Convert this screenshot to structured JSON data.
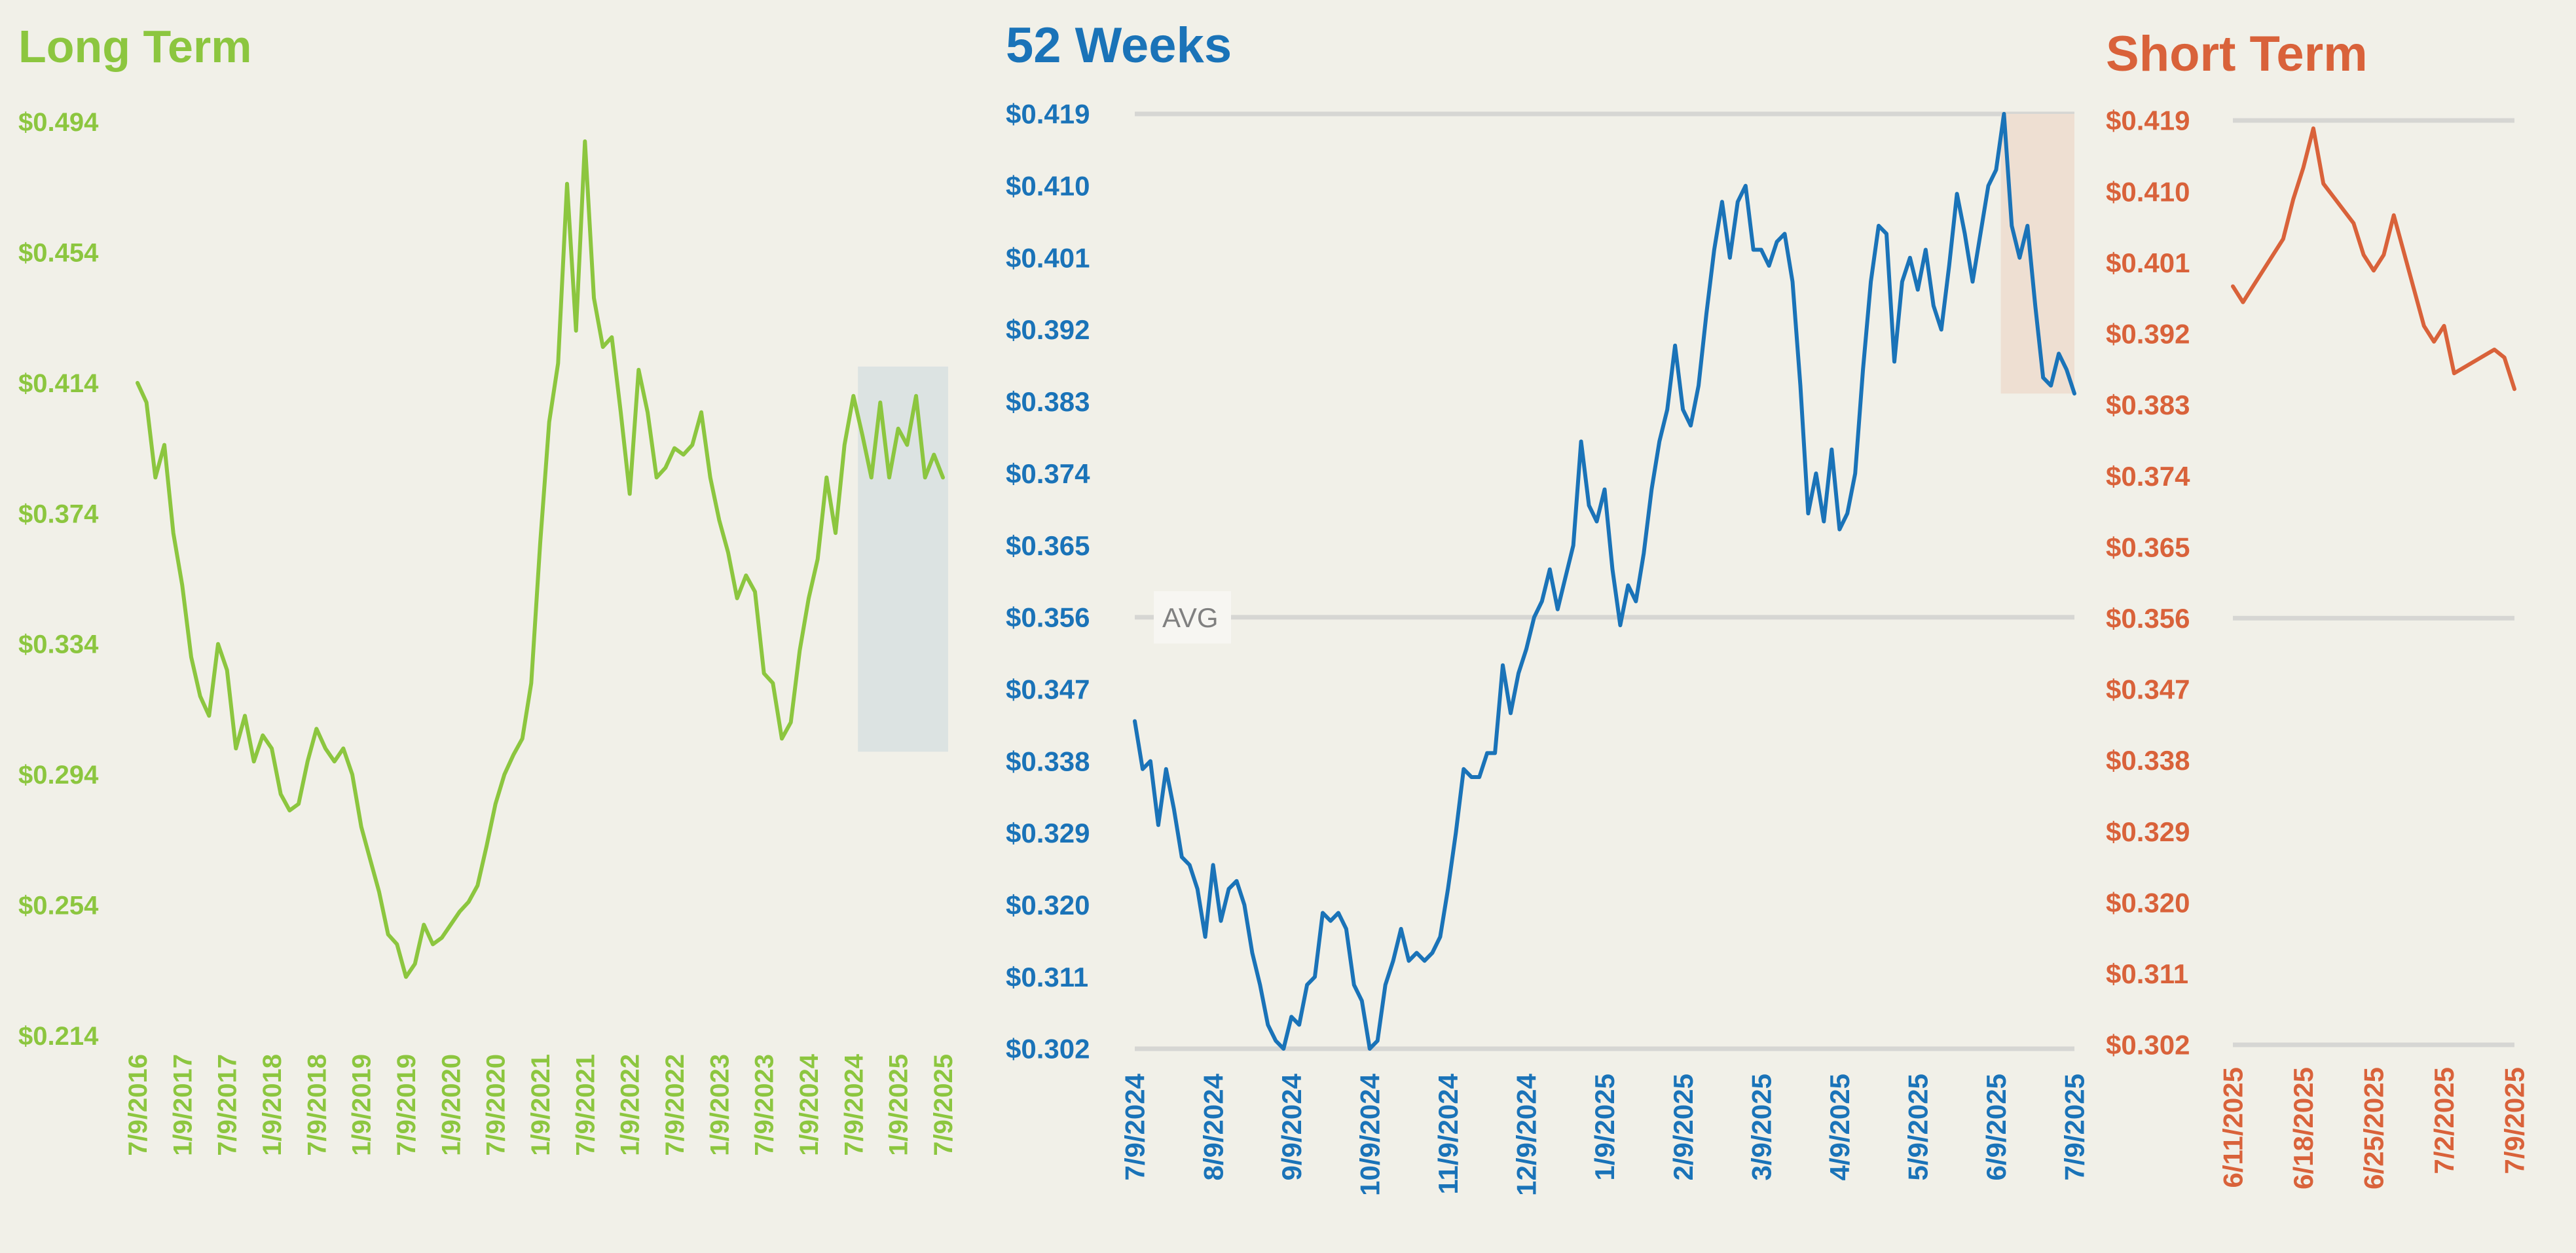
{
  "colors": {
    "background": "#f1f0e8",
    "long_term": "#8cc63f",
    "weeks52": "#1a73b8",
    "short_term": "#d9623a",
    "grid": "#d6d6d3",
    "highlight_long": "#dce3e2",
    "highlight_52": "#eedfd2"
  },
  "chart_data": [
    {
      "id": "long",
      "type": "line",
      "title": "Long Term",
      "y_ticks": [
        "$0.494",
        "$0.454",
        "$0.414",
        "$0.374",
        "$0.334",
        "$0.294",
        "$0.254",
        "$0.214"
      ],
      "x_ticks": [
        "7/9/2016",
        "1/9/2017",
        "7/9/2017",
        "1/9/2018",
        "7/9/2018",
        "1/9/2019",
        "7/9/2019",
        "1/9/2020",
        "7/9/2020",
        "1/9/2021",
        "7/9/2021",
        "1/9/2022",
        "7/9/2022",
        "1/9/2023",
        "7/9/2023",
        "1/9/2024",
        "7/9/2024",
        "1/9/2025",
        "7/9/2025"
      ],
      "ylim": [
        0.214,
        0.494
      ],
      "grid": false,
      "highlight": {
        "x_start": "8/2024",
        "x_end": "7/9/2025",
        "y_range": [
          0.301,
          0.419
        ]
      },
      "series": [
        {
          "x": [
            0,
            0.2,
            0.4,
            0.6,
            0.8,
            1.0,
            1.2,
            1.4,
            1.6,
            1.8,
            2.0,
            2.2,
            2.4,
            2.6,
            2.8,
            3.0,
            3.2,
            3.4,
            3.6,
            3.8,
            4.0,
            4.2,
            4.4,
            4.6,
            4.8,
            5.0,
            5.2,
            5.4,
            5.6,
            5.8,
            6.0,
            6.2,
            6.4,
            6.6,
            6.8,
            7.0,
            7.2,
            7.4,
            7.6,
            7.8,
            8.0,
            8.2,
            8.4,
            8.6,
            8.8,
            9.0,
            9.2,
            9.4,
            9.6,
            9.8,
            10.0,
            10.2,
            10.4,
            10.6,
            10.8,
            11.0,
            11.2,
            11.4,
            11.6,
            11.8,
            12.0,
            12.2,
            12.4,
            12.6,
            12.8,
            13.0,
            13.2,
            13.4,
            13.6,
            13.8,
            14.0,
            14.2,
            14.4,
            14.6,
            14.8,
            15.0,
            15.2,
            15.4,
            15.6,
            15.8,
            16.0,
            16.2,
            16.4,
            16.6,
            16.8,
            17.0,
            17.2,
            17.4,
            17.6,
            17.8,
            18.0
          ],
          "values": [
            0.414,
            0.408,
            0.385,
            0.395,
            0.368,
            0.352,
            0.33,
            0.318,
            0.312,
            0.334,
            0.326,
            0.302,
            0.312,
            0.298,
            0.306,
            0.302,
            0.288,
            0.283,
            0.285,
            0.298,
            0.308,
            0.302,
            0.298,
            0.302,
            0.294,
            0.278,
            0.268,
            0.258,
            0.245,
            0.242,
            0.232,
            0.236,
            0.248,
            0.242,
            0.244,
            0.248,
            0.252,
            0.255,
            0.26,
            0.272,
            0.285,
            0.294,
            0.3,
            0.305,
            0.322,
            0.365,
            0.402,
            0.42,
            0.475,
            0.43,
            0.488,
            0.44,
            0.425,
            0.428,
            0.405,
            0.38,
            0.418,
            0.405,
            0.385,
            0.388,
            0.394,
            0.392,
            0.395,
            0.405,
            0.385,
            0.372,
            0.362,
            0.348,
            0.355,
            0.35,
            0.325,
            0.322,
            0.305,
            0.31,
            0.332,
            0.348,
            0.36,
            0.385,
            0.368,
            0.395,
            0.41,
            0.398,
            0.385,
            0.408,
            0.385,
            0.4,
            0.395,
            0.41,
            0.385,
            0.392,
            0.385
          ]
        }
      ]
    },
    {
      "id": "weeks52",
      "type": "line",
      "title": "52 Weeks",
      "y_ticks": [
        "$0.419",
        "$0.410",
        "$0.401",
        "$0.392",
        "$0.383",
        "$0.374",
        "$0.365",
        "$0.356",
        "$0.347",
        "$0.338",
        "$0.329",
        "$0.320",
        "$0.311",
        "$0.302"
      ],
      "x_ticks": [
        "7/9/2024",
        "8/9/2024",
        "9/9/2024",
        "10/9/2024",
        "11/9/2024",
        "12/9/2024",
        "1/9/2025",
        "2/9/2025",
        "3/9/2025",
        "4/9/2025",
        "5/9/2025",
        "6/9/2025",
        "7/9/2025"
      ],
      "ylim": [
        0.302,
        0.419
      ],
      "gridlines": [
        0.419,
        0.356,
        0.302
      ],
      "avg_label": "AVG",
      "avg_value": 0.356,
      "highlight": {
        "x_start": "6/11/2025",
        "x_end": "7/9/2025",
        "y_range": [
          0.384,
          0.419
        ]
      },
      "series": [
        {
          "x": [
            0,
            0.1,
            0.2,
            0.3,
            0.4,
            0.5,
            0.6,
            0.7,
            0.8,
            0.9,
            1.0,
            1.1,
            1.2,
            1.3,
            1.4,
            1.5,
            1.6,
            1.7,
            1.8,
            1.9,
            2.0,
            2.1,
            2.2,
            2.3,
            2.4,
            2.5,
            2.6,
            2.7,
            2.8,
            2.9,
            3.0,
            3.1,
            3.2,
            3.3,
            3.4,
            3.5,
            3.6,
            3.7,
            3.8,
            3.9,
            4.0,
            4.1,
            4.2,
            4.3,
            4.4,
            4.5,
            4.6,
            4.7,
            4.8,
            4.9,
            5.0,
            5.1,
            5.2,
            5.3,
            5.4,
            5.5,
            5.6,
            5.7,
            5.8,
            5.9,
            6.0,
            6.1,
            6.2,
            6.3,
            6.4,
            6.5,
            6.6,
            6.7,
            6.8,
            6.9,
            7.0,
            7.1,
            7.2,
            7.3,
            7.4,
            7.5,
            7.6,
            7.7,
            7.8,
            7.9,
            8.0,
            8.1,
            8.2,
            8.3,
            8.4,
            8.5,
            8.6,
            8.7,
            8.8,
            8.9,
            9.0,
            9.1,
            9.2,
            9.3,
            9.4,
            9.5,
            9.6,
            9.7,
            9.8,
            9.9,
            10.0,
            10.1,
            10.2,
            10.3,
            10.4,
            10.5,
            10.6,
            10.7,
            10.8,
            10.9,
            11.0,
            11.1,
            11.2,
            11.3,
            11.4,
            11.5,
            11.6,
            11.7,
            11.8,
            11.9,
            12.0
          ],
          "values": [
            0.343,
            0.337,
            0.338,
            0.33,
            0.337,
            0.332,
            0.326,
            0.325,
            0.322,
            0.316,
            0.325,
            0.318,
            0.322,
            0.323,
            0.32,
            0.314,
            0.31,
            0.305,
            0.303,
            0.302,
            0.306,
            0.305,
            0.31,
            0.311,
            0.319,
            0.318,
            0.319,
            0.317,
            0.31,
            0.308,
            0.302,
            0.303,
            0.31,
            0.313,
            0.317,
            0.313,
            0.314,
            0.313,
            0.314,
            0.316,
            0.322,
            0.329,
            0.337,
            0.336,
            0.336,
            0.339,
            0.339,
            0.35,
            0.344,
            0.349,
            0.352,
            0.356,
            0.358,
            0.362,
            0.357,
            0.361,
            0.365,
            0.378,
            0.37,
            0.368,
            0.372,
            0.362,
            0.355,
            0.36,
            0.358,
            0.364,
            0.372,
            0.378,
            0.382,
            0.39,
            0.382,
            0.38,
            0.385,
            0.394,
            0.402,
            0.408,
            0.401,
            0.408,
            0.41,
            0.402,
            0.402,
            0.4,
            0.403,
            0.404,
            0.398,
            0.385,
            0.369,
            0.374,
            0.368,
            0.377,
            0.367,
            0.369,
            0.374,
            0.387,
            0.398,
            0.405,
            0.404,
            0.388,
            0.398,
            0.401,
            0.397,
            0.402,
            0.395,
            0.392,
            0.4,
            0.409,
            0.404,
            0.398,
            0.404,
            0.41,
            0.412,
            0.419,
            0.405,
            0.401,
            0.405,
            0.395,
            0.386,
            0.385,
            0.389,
            0.387,
            0.384
          ]
        }
      ]
    },
    {
      "id": "short",
      "type": "line",
      "title": "Short Term",
      "y_ticks": [
        "$0.419",
        "$0.410",
        "$0.401",
        "$0.392",
        "$0.383",
        "$0.374",
        "$0.365",
        "$0.356",
        "$0.347",
        "$0.338",
        "$0.329",
        "$0.320",
        "$0.311",
        "$0.302"
      ],
      "x_ticks": [
        "6/11/2025",
        "6/18/2025",
        "6/25/2025",
        "7/2/2025",
        "7/9/2025"
      ],
      "ylim": [
        0.302,
        0.419
      ],
      "gridlines": [
        0.419,
        0.356,
        0.302
      ],
      "series": [
        {
          "x": [
            "6/11/2025",
            "6/12/2025",
            "6/13/2025",
            "6/16/2025",
            "6/17/2025",
            "6/18/2025",
            "6/19/2025",
            "6/20/2025",
            "6/23/2025",
            "6/24/2025",
            "6/25/2025",
            "6/26/2025",
            "6/27/2025",
            "6/30/2025",
            "7/1/2025",
            "7/2/2025",
            "7/3/2025",
            "7/7/2025",
            "7/8/2025",
            "7/9/2025"
          ],
          "values": [
            0.398,
            0.396,
            0.398,
            0.404,
            0.409,
            0.413,
            0.418,
            0.411,
            0.406,
            0.402,
            0.4,
            0.402,
            0.407,
            0.393,
            0.391,
            0.393,
            0.387,
            0.39,
            0.389,
            0.385
          ]
        }
      ]
    }
  ]
}
